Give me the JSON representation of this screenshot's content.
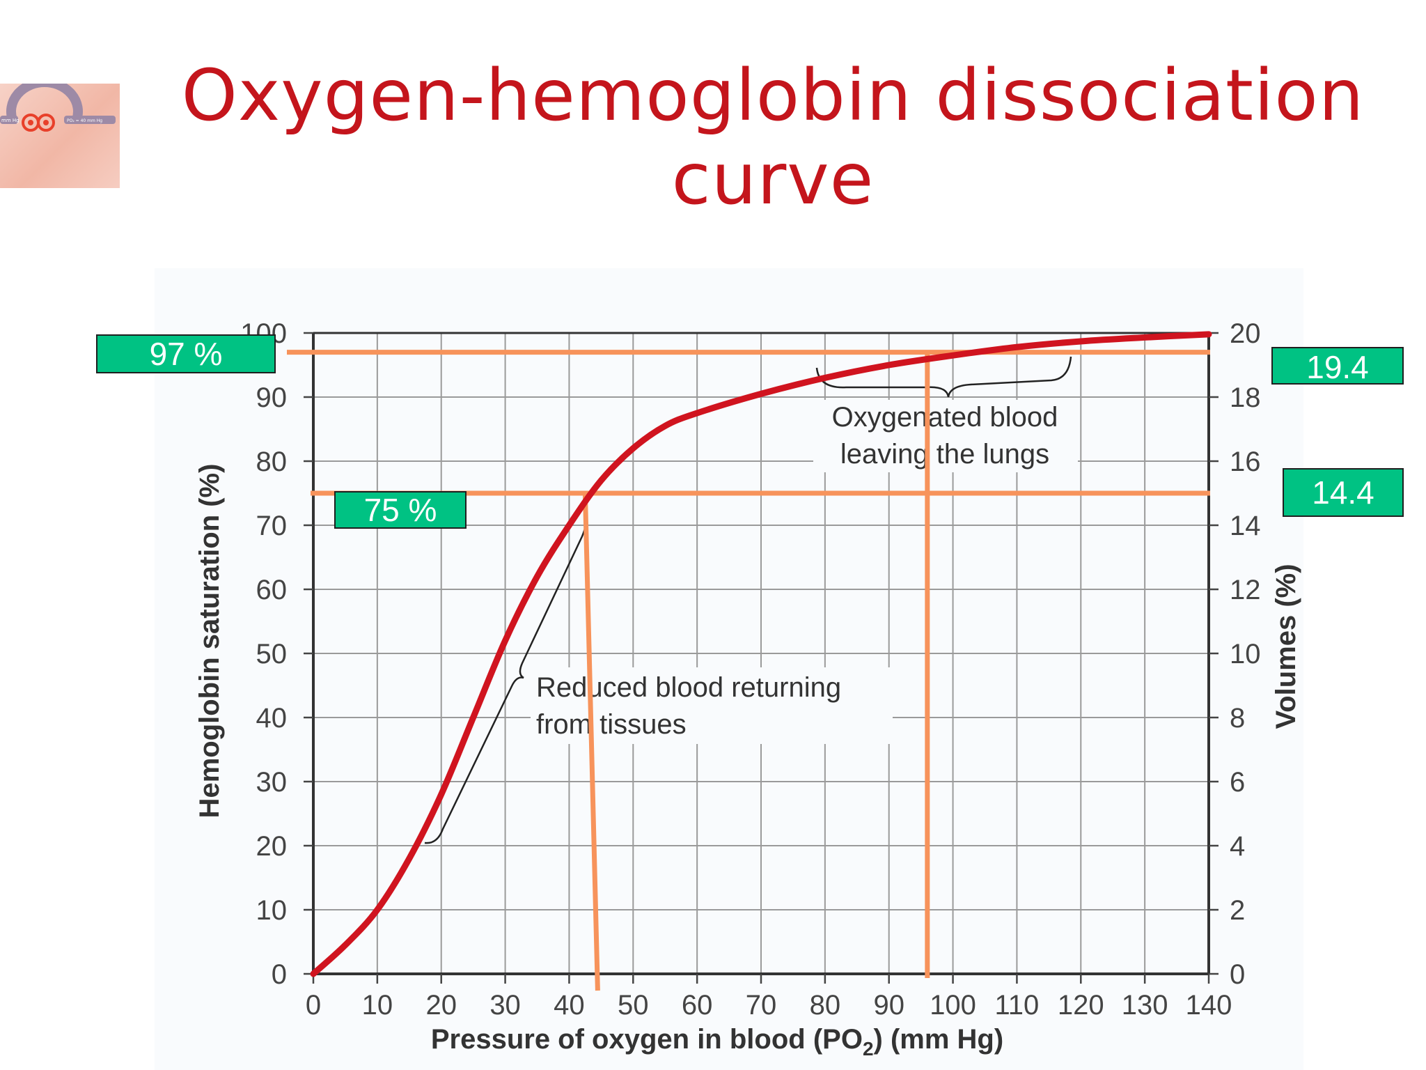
{
  "slide": {
    "title_line1": "Oxygen-hemoglobin dissociation",
    "title_line2": "curve"
  },
  "thumbnail": {
    "label_left": "mm Hg",
    "label_right": "PO₂ = 40 mm Hg"
  },
  "annotations": {
    "badge_97": "97 %",
    "badge_75": "75 %",
    "badge_19_4": "19.4",
    "badge_14_4": "14.4",
    "oxygenated_line1": "Oxygenated blood",
    "oxygenated_line2": "leaving the lungs",
    "reduced_line1": "Reduced blood returning",
    "reduced_line2": "from tissues"
  },
  "colors": {
    "title": "#c4151c",
    "curve": "#d0141f",
    "guide": "#f7935b",
    "badge": "#00c283"
  },
  "chart_data": {
    "type": "line",
    "title": "",
    "xlabel": "Pressure of oxygen in blood (PO",
    "xlabel_sub": "2",
    "xlabel_tail": ") (mm Hg)",
    "ylabel": "Hemoglobin saturation (%)",
    "y2label": "Volumes (%)",
    "xlim": [
      0,
      140
    ],
    "ylim": [
      0,
      100
    ],
    "y2lim": [
      0,
      20
    ],
    "xticks": [
      "0",
      "10",
      "20",
      "30",
      "40",
      "50",
      "60",
      "70",
      "80",
      "90",
      "100",
      "110",
      "120",
      "130",
      "140"
    ],
    "yticks": [
      "0",
      "10",
      "20",
      "30",
      "40",
      "50",
      "60",
      "70",
      "80",
      "90",
      "100"
    ],
    "y2ticks": [
      "0",
      "2",
      "4",
      "6",
      "8",
      "10",
      "12",
      "14",
      "16",
      "18",
      "20"
    ],
    "grid": true,
    "series": [
      {
        "x": [
          0,
          5,
          10,
          15,
          20,
          25,
          30,
          35,
          40,
          45,
          50,
          55,
          60,
          70,
          80,
          90,
          100,
          110,
          120,
          130,
          140
        ],
        "y": [
          0,
          4.5,
          10,
          18,
          28,
          40,
          52,
          62,
          70,
          77,
          82,
          85.5,
          87.5,
          90.5,
          93,
          95,
          96.5,
          97.8,
          98.7,
          99.3,
          99.8
        ]
      }
    ],
    "guides": {
      "horizontal": [
        97,
        75
      ],
      "vertical": [
        96,
        42.5
      ]
    }
  }
}
